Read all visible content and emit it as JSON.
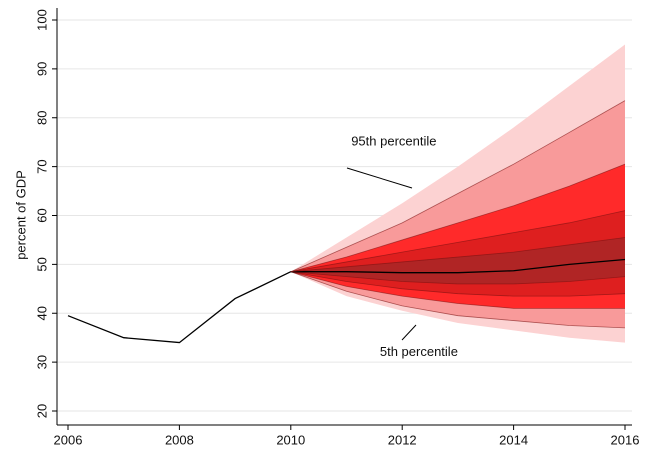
{
  "chart_data": {
    "type": "fan",
    "y_label": "percent of GDP",
    "xlim": [
      2006,
      2016
    ],
    "xticks": [
      2006,
      2008,
      2010,
      2012,
      2014,
      2016
    ],
    "ylim": [
      20,
      100
    ],
    "yticks": [
      20,
      30,
      40,
      50,
      60,
      70,
      80,
      90,
      100
    ],
    "grid": true,
    "history": {
      "x": [
        2006,
        2007,
        2008,
        2009,
        2010
      ],
      "values": [
        39.5,
        35,
        34,
        43,
        48.5
      ],
      "color": "#000000"
    },
    "fan": {
      "x": [
        2010,
        2011,
        2012,
        2013,
        2014,
        2015,
        2016
      ],
      "lines": [
        [
          48.5,
          43.5,
          40.5,
          38,
          36.5,
          35,
          34
        ],
        [
          48.5,
          44.5,
          41.5,
          39.5,
          38.5,
          37.5,
          37
        ],
        [
          48.5,
          45.5,
          43.5,
          42,
          41,
          41,
          41
        ],
        [
          48.5,
          46.5,
          45,
          44,
          43.5,
          43.5,
          44
        ],
        [
          48.5,
          47.5,
          46.5,
          46,
          46,
          46.5,
          47.5
        ],
        [
          48.5,
          48.5,
          48.3,
          48.3,
          48.7,
          50,
          51
        ],
        [
          48.5,
          49.5,
          50.5,
          51.5,
          52.5,
          54,
          55.5
        ],
        [
          48.5,
          50.5,
          52.5,
          54.5,
          56.5,
          58.5,
          61
        ],
        [
          48.5,
          51.5,
          55,
          58.5,
          62,
          66,
          70.5
        ],
        [
          48.5,
          53.5,
          58.5,
          64.5,
          70.5,
          77,
          83.5
        ],
        [
          48.5,
          55.5,
          62.5,
          70,
          78,
          86.5,
          95
        ]
      ],
      "colors": [
        "#fcd2d2",
        "#f89a9a",
        "#ff2a2a",
        "#de1f1f",
        "#b02525"
      ]
    },
    "annotations": [
      {
        "text": "95th percentile",
        "x": 2011.85,
        "y": 75
      },
      {
        "text": "5th percentile",
        "x": 2012.3,
        "y": 32
      }
    ]
  }
}
